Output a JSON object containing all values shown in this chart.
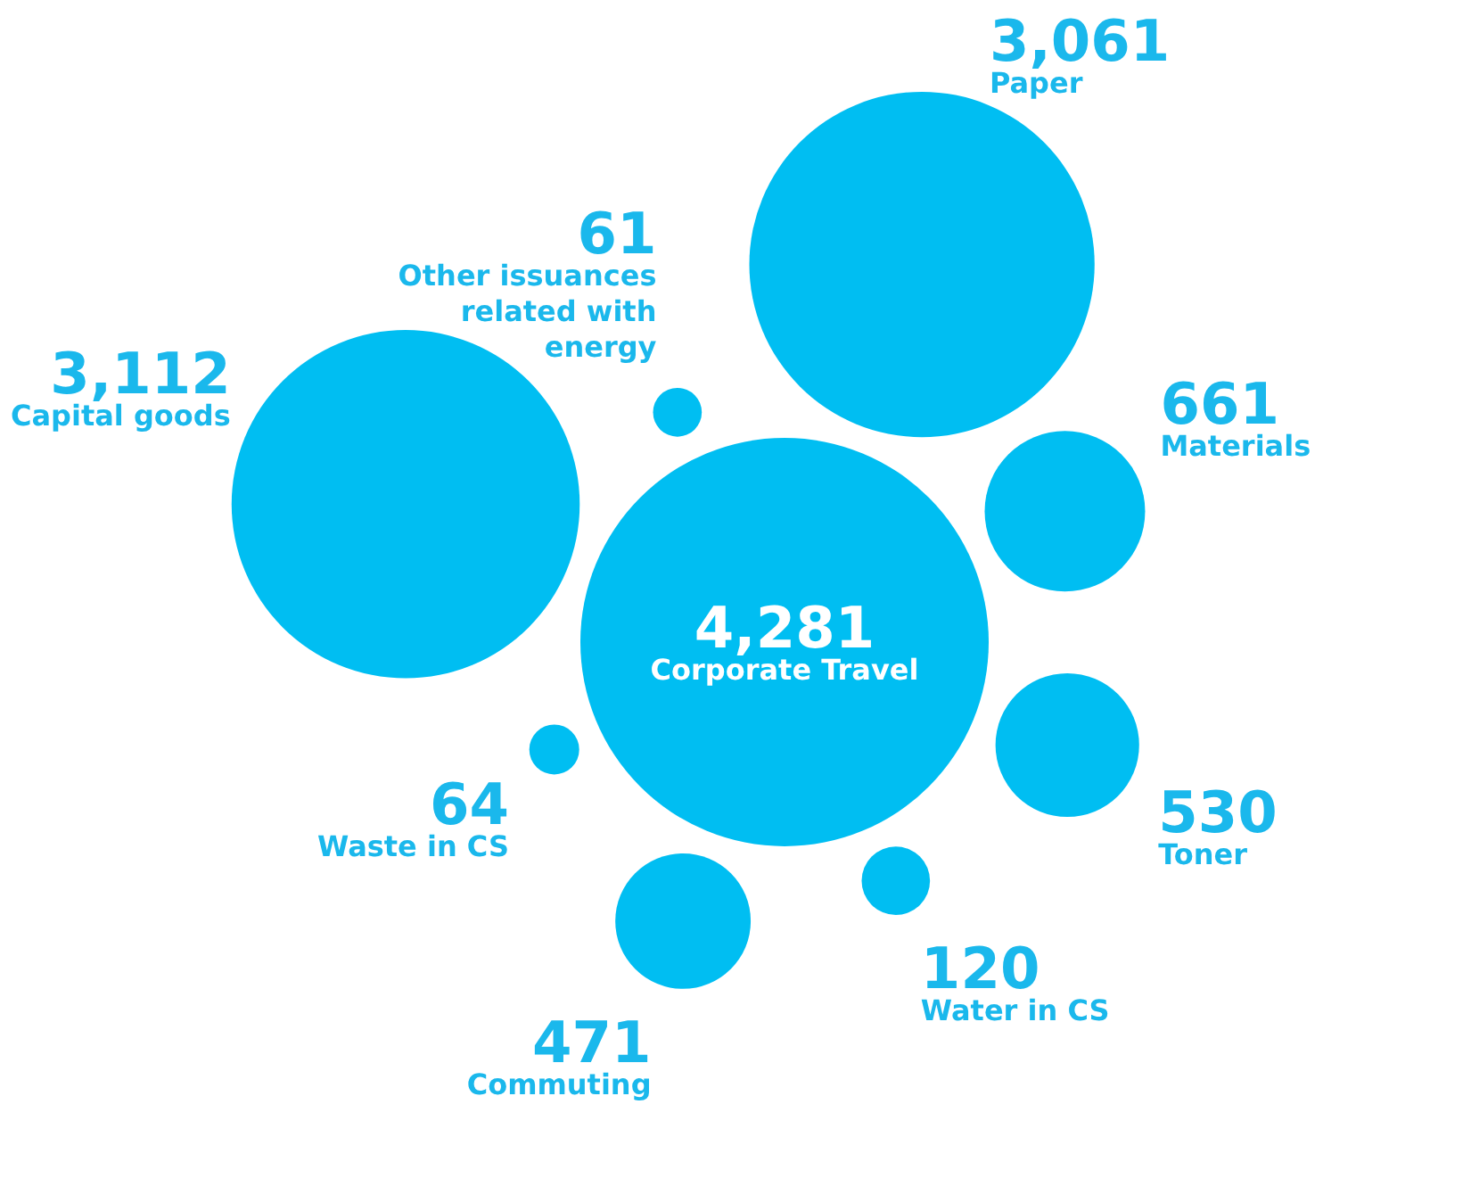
{
  "chart_data": {
    "type": "other",
    "categories": [
      "Corporate Travel",
      "Capital goods",
      "Other issuances related with energy",
      "Paper",
      "Materials",
      "Toner",
      "Water in CS",
      "Commuting",
      "Waste in CS"
    ],
    "values": [
      4281,
      3112,
      61,
      3061,
      661,
      530,
      120,
      471,
      64
    ],
    "value_labels": [
      "4,281",
      "3,112",
      "61",
      "3,061",
      "661",
      "530",
      "120",
      "471",
      "64"
    ],
    "color": "#00bef2"
  }
}
